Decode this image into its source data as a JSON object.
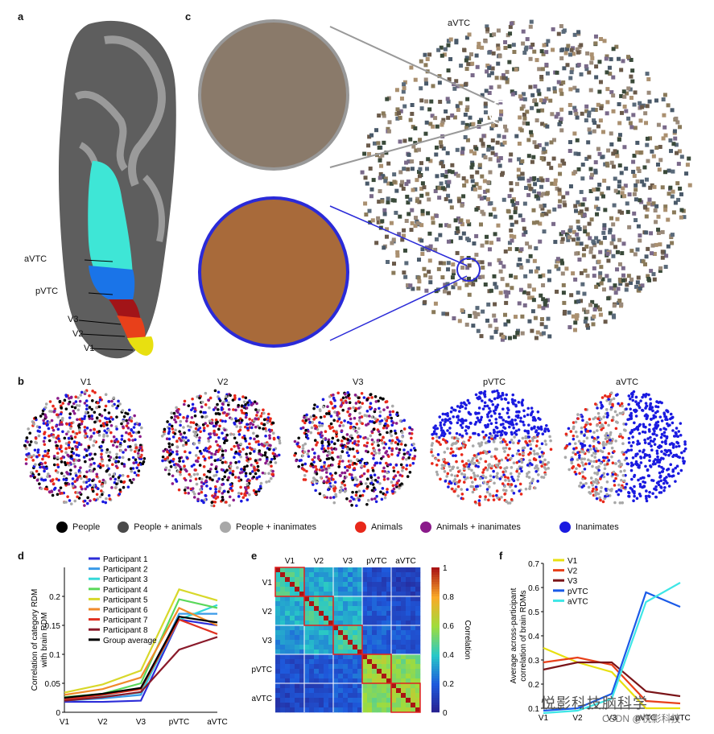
{
  "panels": {
    "a": "a",
    "b": "b",
    "c": "c",
    "d": "d",
    "e": "e",
    "f": "f"
  },
  "panel_a": {
    "labels": [
      "aVTC",
      "pVTC",
      "V3",
      "V2",
      "V1"
    ],
    "colors": {
      "aVTC": "#3ee6d6",
      "pVTC": "#1a74e8",
      "V3": "#a21418",
      "V2": "#e8401a",
      "V1": "#e8e010"
    }
  },
  "panel_c": {
    "title": "aVTC"
  },
  "panel_b": {
    "titles": [
      "V1",
      "V2",
      "V3",
      "pVTC",
      "aVTC"
    ],
    "legend": [
      {
        "label": "People",
        "color": "#000000"
      },
      {
        "label": "People + animals",
        "color": "#4a4a4a"
      },
      {
        "label": "People + inanimates",
        "color": "#a8a8a8"
      },
      {
        "label": "Animals",
        "color": "#e8281a"
      },
      {
        "label": "Animals + inanimates",
        "color": "#8a1a8a"
      },
      {
        "label": "Inanimates",
        "color": "#1a1ae0"
      }
    ]
  },
  "chart_data": [
    {
      "id": "d",
      "type": "line",
      "ylabel": "Correlation of category RDM\nwith brain RDM",
      "categories": [
        "V1",
        "V2",
        "V3",
        "pVTC",
        "aVTC"
      ],
      "ylim": [
        0,
        0.25
      ],
      "yticks": [
        "0",
        "0.05",
        "0.1",
        "0.15",
        "0.2"
      ],
      "series": [
        {
          "name": "Participant 1",
          "color": "#2c2cd8",
          "values": [
            0.018,
            0.018,
            0.02,
            0.16,
            0.15
          ]
        },
        {
          "name": "Participant 2",
          "color": "#3a9ae8",
          "values": [
            0.02,
            0.024,
            0.03,
            0.17,
            0.17
          ]
        },
        {
          "name": "Participant 3",
          "color": "#34d8d8",
          "values": [
            0.022,
            0.027,
            0.034,
            0.16,
            0.185
          ]
        },
        {
          "name": "Participant 4",
          "color": "#5ad85a",
          "values": [
            0.026,
            0.032,
            0.05,
            0.195,
            0.18
          ]
        },
        {
          "name": "Participant 5",
          "color": "#d8d82a",
          "values": [
            0.034,
            0.048,
            0.072,
            0.212,
            0.193
          ]
        },
        {
          "name": "Participant 6",
          "color": "#f08a2a",
          "values": [
            0.03,
            0.04,
            0.06,
            0.18,
            0.15
          ]
        },
        {
          "name": "Participant 7",
          "color": "#e03020",
          "values": [
            0.022,
            0.03,
            0.04,
            0.16,
            0.135
          ]
        },
        {
          "name": "Participant 8",
          "color": "#8a1a2a",
          "values": [
            0.02,
            0.026,
            0.035,
            0.108,
            0.13
          ]
        },
        {
          "name": "Group average",
          "color": "#000000",
          "values": [
            0.025,
            0.032,
            0.042,
            0.165,
            0.155
          ]
        }
      ]
    },
    {
      "id": "e",
      "type": "heatmap",
      "row_labels": [
        "V1",
        "V2",
        "V3",
        "pVTC",
        "aVTC"
      ],
      "col_labels": [
        "V1",
        "V2",
        "V3",
        "pVTC",
        "aVTC"
      ],
      "colorbar_label": "Correlation",
      "colorbar_ticks": [
        "1",
        "0.8",
        "0.6",
        "0.4",
        "0.2",
        "0"
      ],
      "block_values": [
        [
          0.45,
          0.35,
          0.3,
          0.15,
          0.12
        ],
        [
          0.35,
          0.45,
          0.35,
          0.18,
          0.15
        ],
        [
          0.3,
          0.35,
          0.45,
          0.2,
          0.18
        ],
        [
          0.15,
          0.18,
          0.2,
          0.6,
          0.55
        ],
        [
          0.12,
          0.15,
          0.18,
          0.55,
          0.6
        ]
      ]
    },
    {
      "id": "f",
      "type": "line",
      "ylabel": "Average across-participant\ncorrelation of brain RDMs",
      "categories": [
        "V1",
        "V2",
        "V3",
        "pVTC",
        "aVTC"
      ],
      "ylim": [
        0.1,
        0.7
      ],
      "yticks": [
        "0.1",
        "0.2",
        "0.3",
        "0.4",
        "0.5",
        "0.6",
        "0.7"
      ],
      "series": [
        {
          "name": "V1",
          "color": "#e8e010",
          "values": [
            0.35,
            0.29,
            0.25,
            0.1,
            0.1
          ]
        },
        {
          "name": "V2",
          "color": "#e8401a",
          "values": [
            0.29,
            0.31,
            0.28,
            0.13,
            0.12
          ]
        },
        {
          "name": "V3",
          "color": "#7a1418",
          "values": [
            0.26,
            0.29,
            0.29,
            0.17,
            0.15
          ]
        },
        {
          "name": "pVTC",
          "color": "#1a5ae8",
          "values": [
            0.09,
            0.1,
            0.16,
            0.58,
            0.52
          ]
        },
        {
          "name": "aVTC",
          "color": "#3ee6e6",
          "values": [
            0.08,
            0.09,
            0.14,
            0.54,
            0.62
          ]
        }
      ]
    }
  ],
  "watermark": "悦影科技脑科学",
  "watermark2": "CSDN @悦影科技"
}
